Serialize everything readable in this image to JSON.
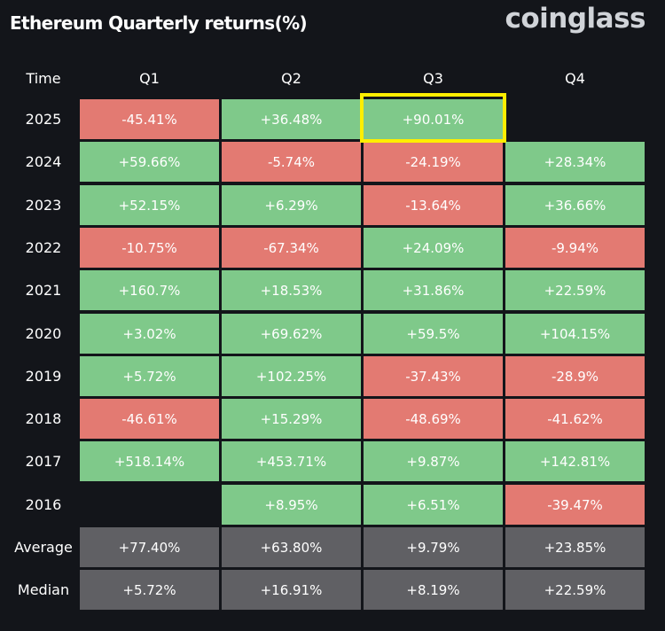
{
  "header": {
    "title": "Ethereum Quarterly returns(%)",
    "logo": "coinglass"
  },
  "colors": {
    "positive": "#7fc98a",
    "negative": "#e37a72",
    "summary": "#606064",
    "highlight": "#ffee00",
    "background": "#13151a"
  },
  "chart_data": {
    "type": "table",
    "title": "Ethereum Quarterly returns(%)",
    "corner_label": "Time",
    "columns": [
      "Q1",
      "Q2",
      "Q3",
      "Q4"
    ],
    "rows": [
      {
        "label": "2025",
        "values": [
          "-45.41%",
          "+36.48%",
          "+90.01%",
          ""
        ]
      },
      {
        "label": "2024",
        "values": [
          "+59.66%",
          "-5.74%",
          "-24.19%",
          "+28.34%"
        ]
      },
      {
        "label": "2023",
        "values": [
          "+52.15%",
          "+6.29%",
          "-13.64%",
          "+36.66%"
        ]
      },
      {
        "label": "2022",
        "values": [
          "-10.75%",
          "-67.34%",
          "+24.09%",
          "-9.94%"
        ]
      },
      {
        "label": "2021",
        "values": [
          "+160.7%",
          "+18.53%",
          "+31.86%",
          "+22.59%"
        ]
      },
      {
        "label": "2020",
        "values": [
          "+3.02%",
          "+69.62%",
          "+59.5%",
          "+104.15%"
        ]
      },
      {
        "label": "2019",
        "values": [
          "+5.72%",
          "+102.25%",
          "-37.43%",
          "-28.9%"
        ]
      },
      {
        "label": "2018",
        "values": [
          "-46.61%",
          "+15.29%",
          "-48.69%",
          "-41.62%"
        ]
      },
      {
        "label": "2017",
        "values": [
          "+518.14%",
          "+453.71%",
          "+9.87%",
          "+142.81%"
        ]
      },
      {
        "label": "2016",
        "values": [
          "",
          "+8.95%",
          "+6.51%",
          "-39.47%"
        ]
      }
    ],
    "summary_rows": [
      {
        "label": "Average",
        "values": [
          "+77.40%",
          "+63.80%",
          "+9.79%",
          "+23.85%"
        ]
      },
      {
        "label": "Median",
        "values": [
          "+5.72%",
          "+16.91%",
          "+8.19%",
          "+22.59%"
        ]
      }
    ],
    "highlighted_cell": {
      "row": "2025",
      "column": "Q3"
    }
  }
}
